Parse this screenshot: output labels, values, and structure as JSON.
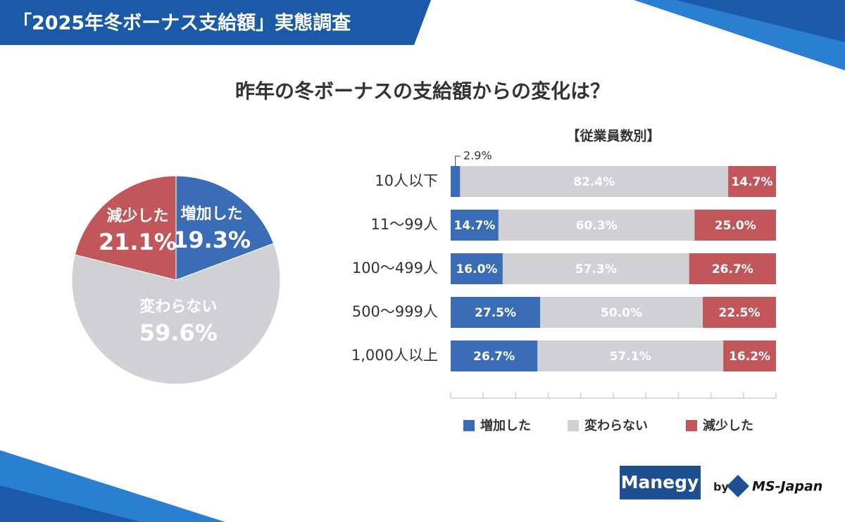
{
  "header": {
    "title": "「2025年冬ボーナス支給額」実態調査"
  },
  "title": "昨年の冬ボーナスの支給額からの変化は？",
  "chart_data": [
    {
      "type": "pie",
      "categories": [
        "増加した",
        "変わらない",
        "減少した"
      ],
      "values": [
        19.3,
        59.6,
        21.1
      ],
      "value_labels": [
        "19.3%",
        "59.6%",
        "21.1%"
      ],
      "colors": [
        "#3a6db5",
        "#d0d1d5",
        "#c2575b"
      ]
    },
    {
      "type": "bar",
      "orientation": "horizontal",
      "stacked": true,
      "subtitle": "【従業員数別】",
      "categories": [
        "10人以下",
        "11〜99人",
        "100〜499人",
        "500〜999人",
        "1,000人以上"
      ],
      "series": [
        {
          "name": "増加した",
          "color": "#3a6db5",
          "values": [
            2.9,
            14.7,
            16.0,
            27.5,
            26.7
          ],
          "value_labels": [
            "2.9%",
            "14.7%",
            "16.0%",
            "27.5%",
            "26.7%"
          ]
        },
        {
          "name": "変わらない",
          "color": "#d0d1d5",
          "values": [
            82.4,
            60.3,
            57.3,
            50.0,
            57.1
          ],
          "value_labels": [
            "82.4%",
            "60.3%",
            "57.3%",
            "50.0%",
            "57.1%"
          ]
        },
        {
          "name": "減少した",
          "color": "#c2575b",
          "values": [
            14.7,
            25.0,
            26.7,
            22.5,
            16.2
          ],
          "value_labels": [
            "14.7%",
            "25.0%",
            "26.7%",
            "22.5%",
            "16.2%"
          ]
        }
      ],
      "xlim": [
        0,
        100
      ],
      "xticks": [
        0,
        10,
        20,
        30,
        40,
        50,
        60,
        70,
        80,
        90,
        100
      ],
      "legend": "bottom"
    }
  ],
  "logos": {
    "manegy": "Manegy",
    "by": "by",
    "company": "MS-Japan"
  }
}
